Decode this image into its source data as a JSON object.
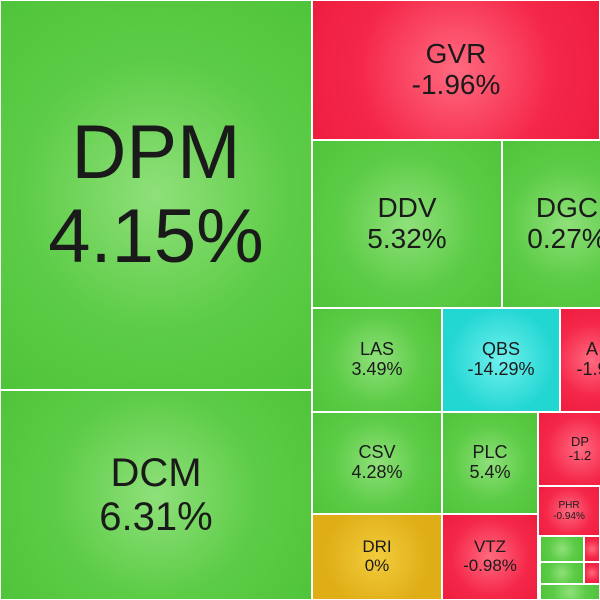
{
  "tiles": [
    {
      "ticker": "DPM",
      "change": "4.15%"
    },
    {
      "ticker": "DCM",
      "change": "6.31%"
    },
    {
      "ticker": "GVR",
      "change": "-1.96%"
    },
    {
      "ticker": "DDV",
      "change": "5.32%"
    },
    {
      "ticker": "DGC",
      "change": "0.27%"
    },
    {
      "ticker": "LAS",
      "change": "3.49%"
    },
    {
      "ticker": "QBS",
      "change": "-14.29%"
    },
    {
      "ticker": "A",
      "change": "-1.9"
    },
    {
      "ticker": "CSV",
      "change": "4.28%"
    },
    {
      "ticker": "PLC",
      "change": "5.4%"
    },
    {
      "ticker": "DP",
      "change": "-1.2"
    },
    {
      "ticker": "PHR",
      "change": "-0.94%"
    },
    {
      "ticker": "DRI",
      "change": "0%"
    },
    {
      "ticker": "VTZ",
      "change": "-0.98%"
    }
  ]
}
